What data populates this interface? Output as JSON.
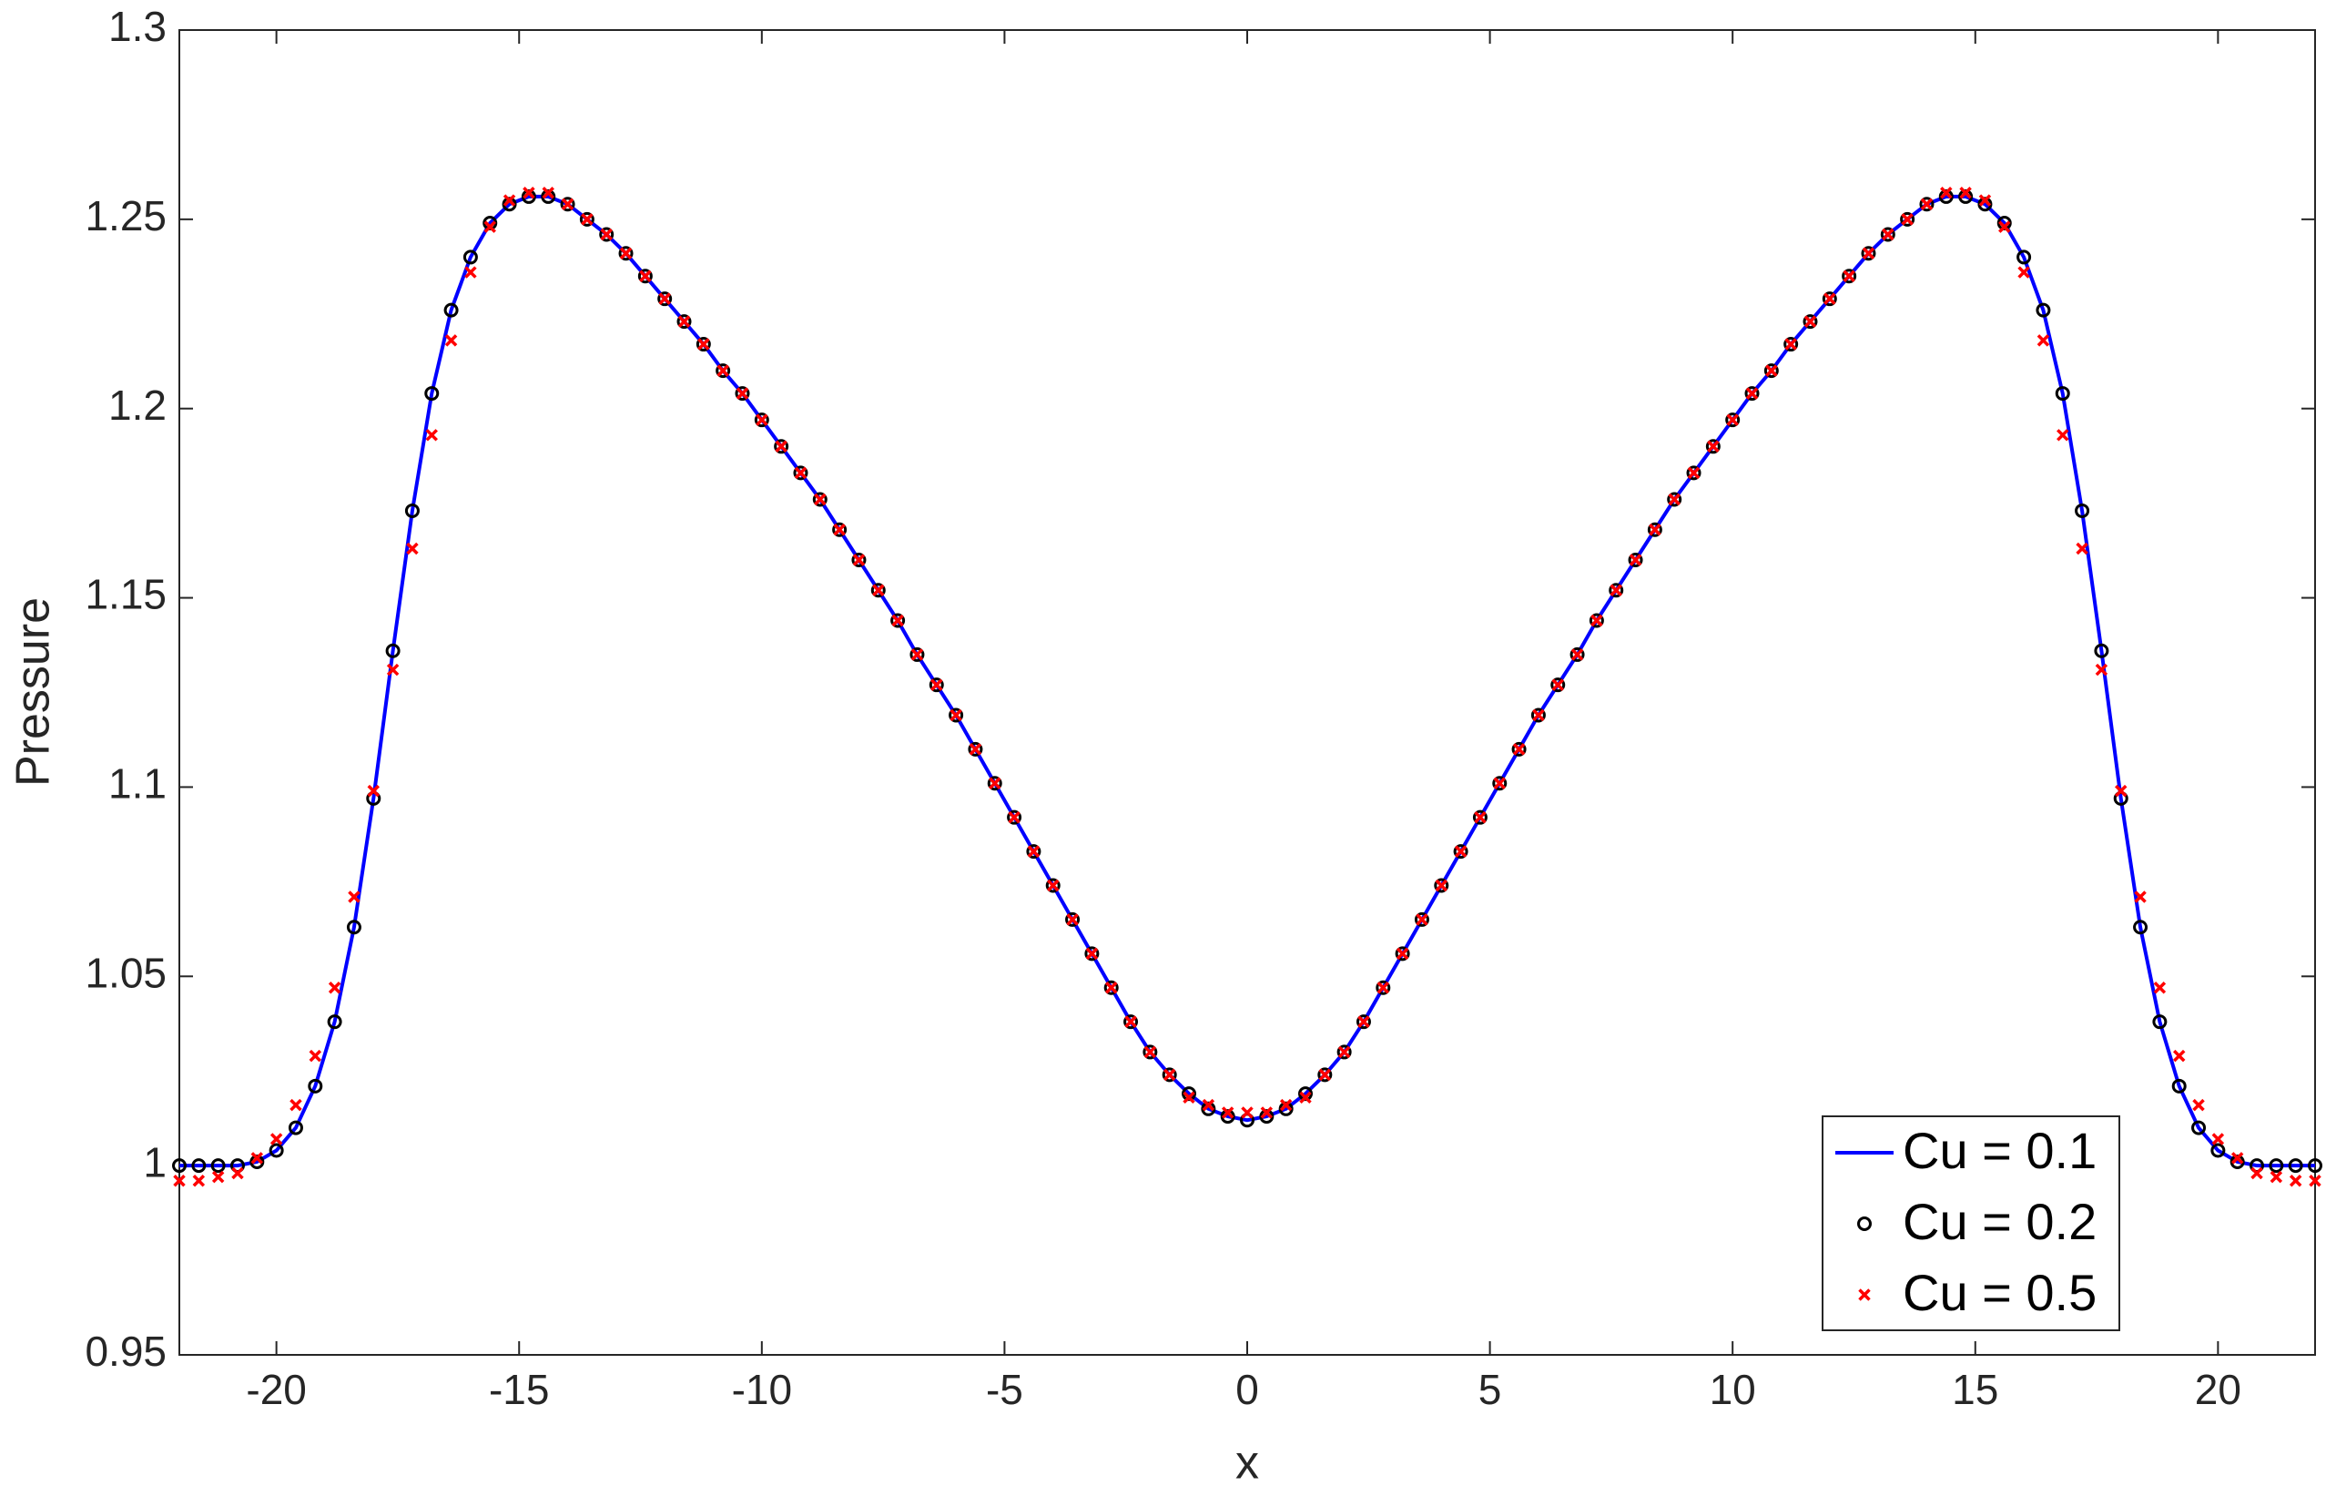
{
  "chart_data": {
    "type": "line",
    "x_label": "x",
    "y_label": "Pressure",
    "x": [
      -22,
      -21.6,
      -21.2,
      -20.8,
      -20.4,
      -20,
      -19.6,
      -19.2,
      -18.8,
      -18.4,
      -18,
      -17.6,
      -17.2,
      -16.8,
      -16.4,
      -16,
      -15.6,
      -15.2,
      -14.8,
      -14.4,
      -14,
      -13.6,
      -13.2,
      -12.8,
      -12.4,
      -12,
      -11.6,
      -11.2,
      -10.8,
      -10.4,
      -10,
      -9.6,
      -9.2,
      -8.8,
      -8.4,
      -8,
      -7.6,
      -7.2,
      -6.8,
      -6.4,
      -6,
      -5.6,
      -5.2,
      -4.8,
      -4.4,
      -4,
      -3.6,
      -3.2,
      -2.8,
      -2.4,
      -2,
      -1.6,
      -1.2,
      -0.8,
      -0.4,
      0,
      0.4,
      0.8,
      1.2,
      1.6,
      2,
      2.4,
      2.8,
      3.2,
      3.6,
      4,
      4.4,
      4.8,
      5.2,
      5.6,
      6,
      6.4,
      6.8,
      7.2,
      7.6,
      8,
      8.4,
      8.8,
      9.2,
      9.6,
      10,
      10.4,
      10.8,
      11.2,
      11.6,
      12,
      12.4,
      12.8,
      13.2,
      13.6,
      14,
      14.4,
      14.8,
      15.2,
      15.6,
      16,
      16.4,
      16.8,
      17.2,
      17.6,
      18,
      18.4,
      18.8,
      19.2,
      19.6,
      20,
      20.4,
      20.8,
      21.2,
      21.6,
      22
    ],
    "series": [
      {
        "name": "Cu = 0.1",
        "color": "#0000ff",
        "marker": "line",
        "values": [
          1.0,
          1.0,
          1.0,
          1.0,
          1.001,
          1.004,
          1.01,
          1.021,
          1.038,
          1.063,
          1.097,
          1.136,
          1.173,
          1.204,
          1.226,
          1.24,
          1.249,
          1.254,
          1.256,
          1.256,
          1.254,
          1.25,
          1.246,
          1.241,
          1.235,
          1.229,
          1.223,
          1.217,
          1.21,
          1.204,
          1.197,
          1.19,
          1.183,
          1.176,
          1.168,
          1.16,
          1.152,
          1.144,
          1.135,
          1.127,
          1.119,
          1.11,
          1.101,
          1.092,
          1.083,
          1.074,
          1.065,
          1.056,
          1.047,
          1.038,
          1.03,
          1.024,
          1.019,
          1.015,
          1.013,
          1.012,
          1.013,
          1.015,
          1.019,
          1.024,
          1.03,
          1.038,
          1.047,
          1.056,
          1.065,
          1.074,
          1.083,
          1.092,
          1.101,
          1.11,
          1.119,
          1.127,
          1.135,
          1.144,
          1.152,
          1.16,
          1.168,
          1.176,
          1.183,
          1.19,
          1.197,
          1.204,
          1.21,
          1.217,
          1.223,
          1.229,
          1.235,
          1.241,
          1.246,
          1.25,
          1.254,
          1.256,
          1.256,
          1.254,
          1.249,
          1.24,
          1.226,
          1.204,
          1.173,
          1.136,
          1.097,
          1.063,
          1.038,
          1.021,
          1.01,
          1.004,
          1.001,
          1.0,
          1.0,
          1.0,
          1.0
        ]
      },
      {
        "name": "Cu = 0.2",
        "color": "#000000",
        "marker": "circle",
        "values": [
          1.0,
          1.0,
          1.0,
          1.0,
          1.001,
          1.004,
          1.01,
          1.021,
          1.038,
          1.063,
          1.097,
          1.136,
          1.173,
          1.204,
          1.226,
          1.24,
          1.249,
          1.254,
          1.256,
          1.256,
          1.254,
          1.25,
          1.246,
          1.241,
          1.235,
          1.229,
          1.223,
          1.217,
          1.21,
          1.204,
          1.197,
          1.19,
          1.183,
          1.176,
          1.168,
          1.16,
          1.152,
          1.144,
          1.135,
          1.127,
          1.119,
          1.11,
          1.101,
          1.092,
          1.083,
          1.074,
          1.065,
          1.056,
          1.047,
          1.038,
          1.03,
          1.024,
          1.019,
          1.015,
          1.013,
          1.012,
          1.013,
          1.015,
          1.019,
          1.024,
          1.03,
          1.038,
          1.047,
          1.056,
          1.065,
          1.074,
          1.083,
          1.092,
          1.101,
          1.11,
          1.119,
          1.127,
          1.135,
          1.144,
          1.152,
          1.16,
          1.168,
          1.176,
          1.183,
          1.19,
          1.197,
          1.204,
          1.21,
          1.217,
          1.223,
          1.229,
          1.235,
          1.241,
          1.246,
          1.25,
          1.254,
          1.256,
          1.256,
          1.254,
          1.249,
          1.24,
          1.226,
          1.204,
          1.173,
          1.136,
          1.097,
          1.063,
          1.038,
          1.021,
          1.01,
          1.004,
          1.001,
          1.0,
          1.0,
          1.0,
          1.0
        ]
      },
      {
        "name": "Cu = 0.5",
        "color": "#ff0000",
        "marker": "x",
        "values": [
          0.996,
          0.996,
          0.997,
          0.998,
          1.002,
          1.007,
          1.016,
          1.029,
          1.047,
          1.071,
          1.099,
          1.131,
          1.163,
          1.193,
          1.218,
          1.236,
          1.248,
          1.255,
          1.257,
          1.257,
          1.254,
          1.25,
          1.246,
          1.241,
          1.235,
          1.229,
          1.223,
          1.217,
          1.21,
          1.204,
          1.197,
          1.19,
          1.183,
          1.176,
          1.168,
          1.16,
          1.152,
          1.144,
          1.135,
          1.127,
          1.119,
          1.11,
          1.101,
          1.092,
          1.083,
          1.074,
          1.065,
          1.056,
          1.047,
          1.038,
          1.03,
          1.024,
          1.018,
          1.016,
          1.014,
          1.014,
          1.014,
          1.016,
          1.018,
          1.024,
          1.03,
          1.038,
          1.047,
          1.056,
          1.065,
          1.074,
          1.083,
          1.092,
          1.101,
          1.11,
          1.119,
          1.127,
          1.135,
          1.144,
          1.152,
          1.16,
          1.168,
          1.176,
          1.183,
          1.19,
          1.197,
          1.204,
          1.21,
          1.217,
          1.223,
          1.229,
          1.235,
          1.241,
          1.246,
          1.25,
          1.254,
          1.257,
          1.257,
          1.255,
          1.248,
          1.236,
          1.218,
          1.193,
          1.163,
          1.131,
          1.099,
          1.071,
          1.047,
          1.029,
          1.016,
          1.007,
          1.002,
          0.998,
          0.997,
          0.996,
          0.996
        ]
      }
    ],
    "xlim": [
      -22,
      22
    ],
    "xticks": [
      -20,
      -15,
      -10,
      -5,
      0,
      5,
      10,
      15,
      20
    ],
    "ylim": [
      0.95,
      1.3
    ],
    "yticks": [
      0.95,
      1,
      1.05,
      1.1,
      1.15,
      1.2,
      1.25,
      1.3
    ],
    "grid": false,
    "legend": "lower right"
  }
}
